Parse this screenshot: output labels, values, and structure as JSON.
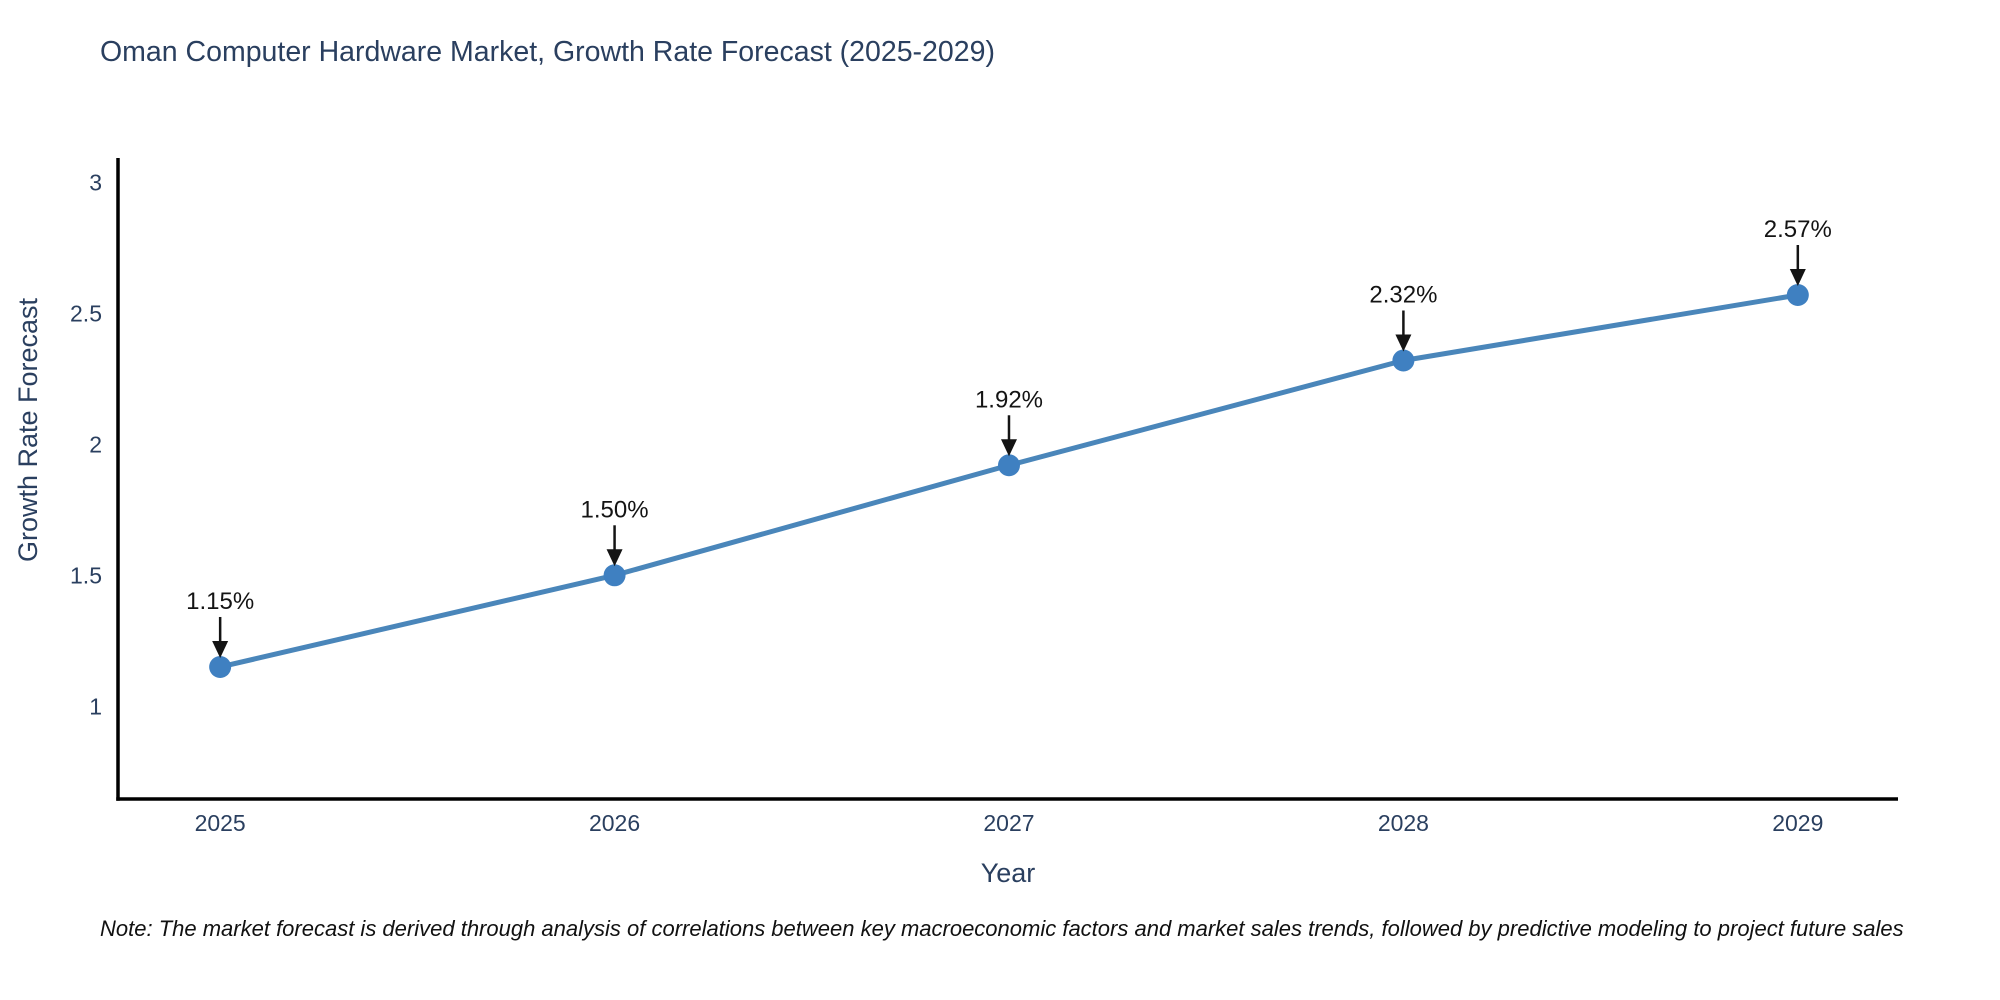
{
  "note": {
    "text": "Note: The market forecast is derived through analysis of correlations between key macroeconomic factors and market sales trends, followed by predictive modeling to project future sales"
  },
  "chart_data": {
    "type": "line",
    "title": "Oman Computer Hardware Market, Growth Rate Forecast (2025-2029)",
    "xlabel": "Year",
    "ylabel": "Growth Rate Forecast",
    "x": [
      2025,
      2026,
      2027,
      2028,
      2029
    ],
    "y": [
      1.15,
      1.5,
      1.92,
      2.32,
      2.57
    ],
    "point_labels": [
      "1.15%",
      "1.50%",
      "1.92%",
      "2.32%",
      "2.57%"
    ],
    "x_tick_labels": [
      "2025",
      "2026",
      "2027",
      "2028",
      "2029"
    ],
    "y_ticks": [
      1,
      1.5,
      2,
      2.5,
      3
    ],
    "y_tick_labels": [
      "1",
      "1.5",
      "2",
      "2.5",
      "3"
    ],
    "xlim": [
      2024.741,
      2029.254
    ],
    "ylim": [
      0.646,
      3.093
    ],
    "grid": false,
    "legend": "none",
    "line_color": "#4a86ba",
    "marker_color": "#3f80c1",
    "axis_color": "#000000",
    "tick_label_color": "#2a3f5f",
    "annotation_color": "#141414"
  }
}
